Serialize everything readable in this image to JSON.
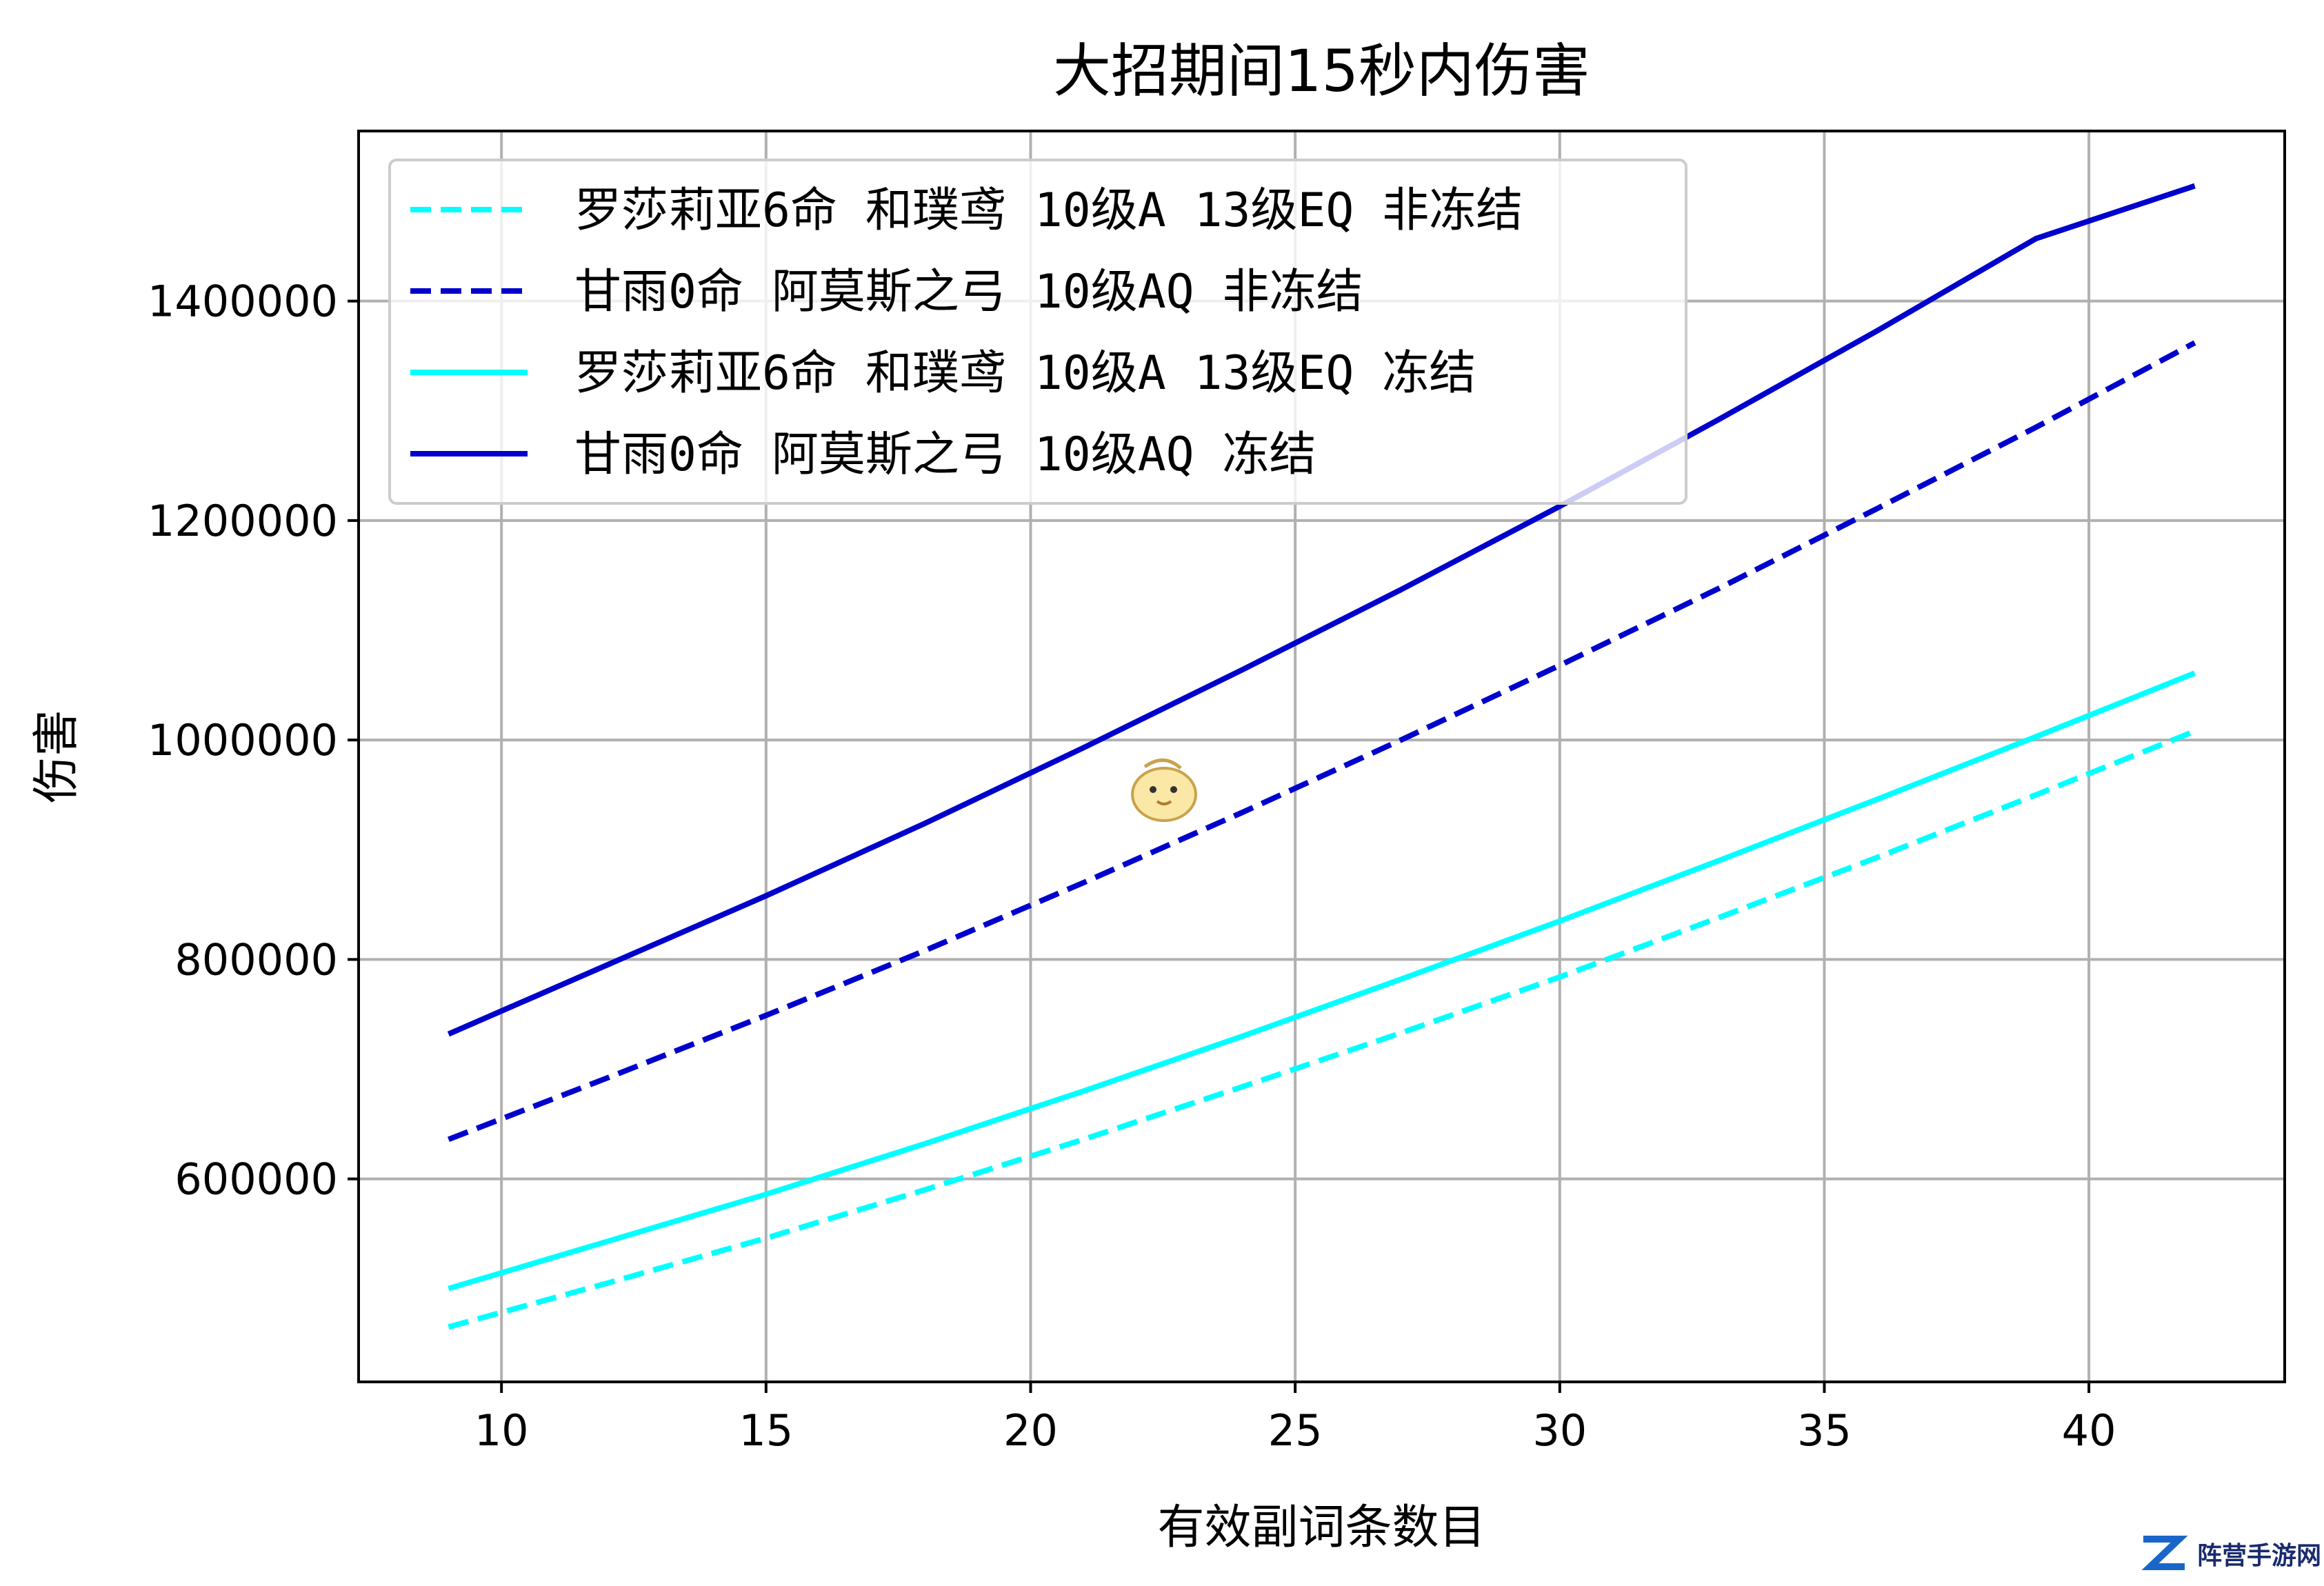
{
  "chart_data": {
    "type": "line",
    "title": "大招期间15秒内伤害",
    "xlabel": "有效副词条数目",
    "ylabel": "伤害",
    "xlim": [
      7.3,
      43.7
    ],
    "ylim": [
      415000,
      1555000
    ],
    "xticks": [
      10,
      15,
      20,
      25,
      30,
      35,
      40
    ],
    "yticks": [
      600000,
      800000,
      1000000,
      1200000,
      1400000
    ],
    "grid": true,
    "legend_position": "top-left",
    "series": [
      {
        "name": "罗莎莉亚6命 和璞鸢 10级A 13级EQ 非冻结",
        "color": "#00ffff",
        "style": "dashed",
        "x": [
          9,
          12,
          15,
          18,
          21,
          24,
          27,
          30,
          33,
          36,
          39,
          42
        ],
        "y": [
          465000,
          505000,
          546000,
          590000,
          636000,
          684000,
          733000,
          784000,
          838000,
          893000,
          950000,
          1008000
        ]
      },
      {
        "name": "甘雨0命 阿莫斯之弓 10级AQ 非冻结",
        "color": "#0000cd",
        "style": "dashed",
        "x": [
          9,
          12,
          15,
          18,
          21,
          24,
          27,
          30,
          33,
          36,
          39,
          42
        ],
        "y": [
          636000,
          692000,
          749000,
          808000,
          870000,
          934000,
          1000000,
          1068000,
          1138000,
          1211000,
          1285000,
          1362000
        ]
      },
      {
        "name": "罗莎莉亚6命 和璞鸢 10级A 13级EQ 冻结",
        "color": "#00ffff",
        "style": "solid",
        "x": [
          9,
          12,
          15,
          18,
          21,
          24,
          27,
          30,
          33,
          36,
          39,
          42
        ],
        "y": [
          500000,
          543000,
          586000,
          632000,
          680000,
          730000,
          782000,
          835000,
          890000,
          946000,
          1003000,
          1061000
        ]
      },
      {
        "name": "甘雨0命 阿莫斯之弓 10级AQ 冻结",
        "color": "#0000cd",
        "style": "solid",
        "x": [
          9,
          12,
          15,
          18,
          21,
          24,
          27,
          30,
          33,
          36,
          39,
          42
        ],
        "y": [
          732000,
          795000,
          858000,
          924000,
          993000,
          1064000,
          1137000,
          1213000,
          1292000,
          1373000,
          1457000,
          1505000
        ]
      }
    ]
  },
  "watermark": {
    "text": "阵营手游网"
  }
}
